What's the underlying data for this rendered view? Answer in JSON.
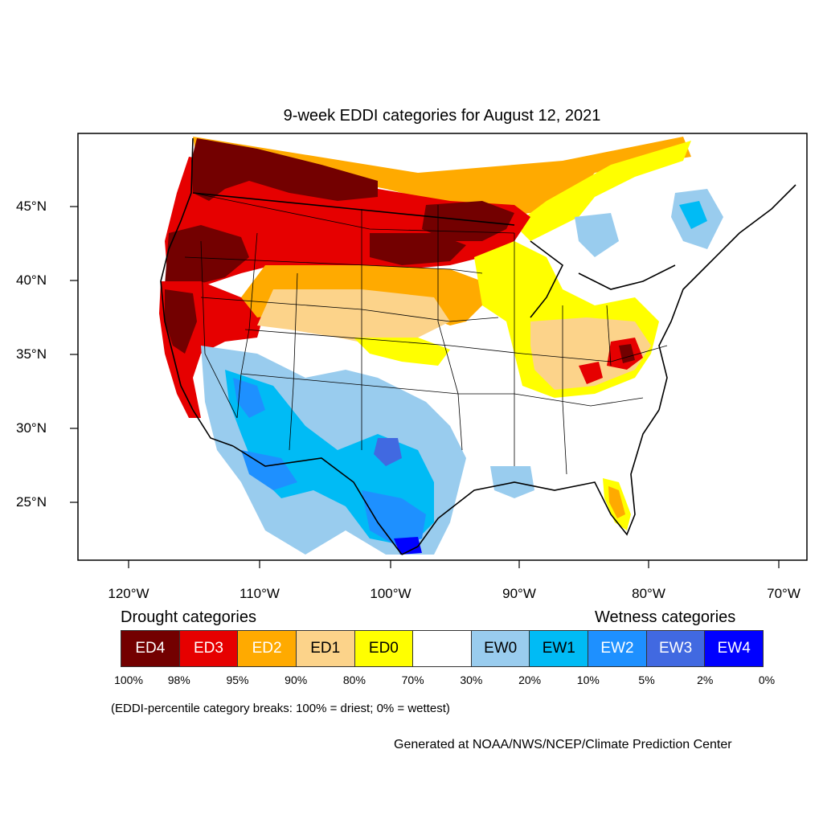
{
  "title": "9-week EDDI categories for August 12, 2021",
  "axes": {
    "lat_labels": [
      "45°N",
      "40°N",
      "35°N",
      "30°N",
      "25°N"
    ],
    "lon_labels": [
      "120°W",
      "110°W",
      "100°W",
      "90°W",
      "80°W",
      "70°W"
    ]
  },
  "legend": {
    "drought_heading": "Drought categories",
    "wetness_heading": "Wetness categories",
    "categories": [
      {
        "label": "ED4",
        "color": "#730000",
        "text_color": "#ffffff"
      },
      {
        "label": "ED3",
        "color": "#e60000",
        "text_color": "#ffffff"
      },
      {
        "label": "ED2",
        "color": "#ffaa00",
        "text_color": "#ffffff"
      },
      {
        "label": "ED1",
        "color": "#fcd38a",
        "text_color": "#000000"
      },
      {
        "label": "ED0",
        "color": "#ffff00",
        "text_color": "#000000"
      },
      {
        "label": "",
        "color": "#ffffff",
        "text_color": "#000000"
      },
      {
        "label": "EW0",
        "color": "#99ccee",
        "text_color": "#000000"
      },
      {
        "label": "EW1",
        "color": "#00bbf5",
        "text_color": "#000000"
      },
      {
        "label": "EW2",
        "color": "#1e90ff",
        "text_color": "#ffffff"
      },
      {
        "label": "EW3",
        "color": "#4169e1",
        "text_color": "#ffffff"
      },
      {
        "label": "EW4",
        "color": "#0000ff",
        "text_color": "#ffffff"
      }
    ],
    "breaks": [
      "100%",
      "98%",
      "95%",
      "90%",
      "80%",
      "70%",
      "30%",
      "20%",
      "10%",
      "5%",
      "2%",
      "0%"
    ]
  },
  "note": "(EDDI-percentile category breaks: 100% = driest; 0% = wettest)",
  "credit": "Generated at NOAA/NWS/NCEP/Climate Prediction Center"
}
